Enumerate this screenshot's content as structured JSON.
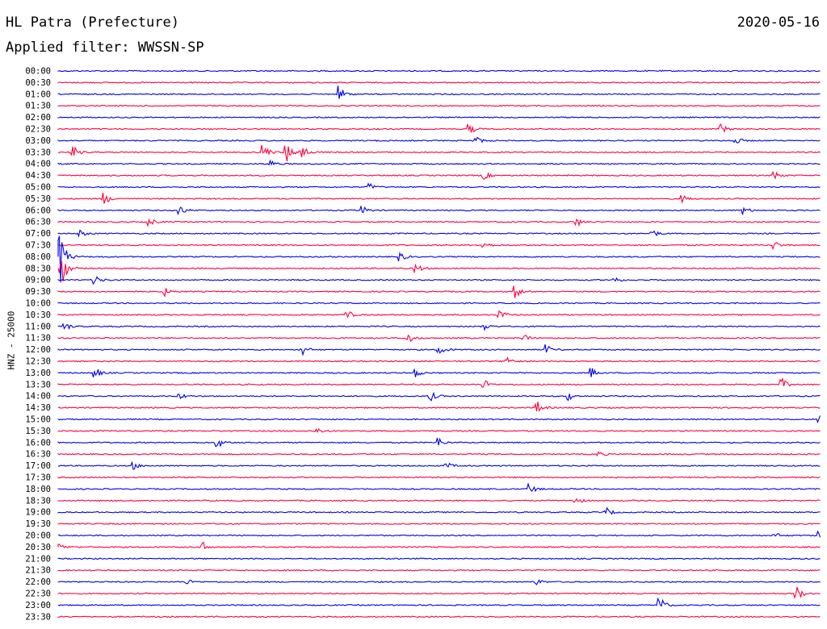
{
  "header": {
    "station": "HL Patra (Prefecture)",
    "date": "2020-05-16",
    "filter": "Applied filter: WWSSN-SP"
  },
  "chart_data": {
    "type": "line",
    "title": "HL Patra (Prefecture)",
    "subtitle": "Applied filter: WWSSN-SP",
    "ylabel": "HNZ - 25000",
    "xlabel": "",
    "grid": false,
    "legend": "none",
    "colors": {
      "even_trace": "#0000ee",
      "odd_trace": "#ff0040"
    },
    "rows": [
      {
        "label": "00:00",
        "events": []
      },
      {
        "label": "00:30",
        "events": []
      },
      {
        "label": "01:00",
        "events": [
          {
            "x": 0.37,
            "amp": 10
          }
        ]
      },
      {
        "label": "01:30",
        "events": []
      },
      {
        "label": "02:00",
        "events": []
      },
      {
        "label": "02:30",
        "events": [
          {
            "x": 0.54,
            "amp": 6
          },
          {
            "x": 0.87,
            "amp": 6
          }
        ]
      },
      {
        "label": "03:00",
        "events": [
          {
            "x": 0.55,
            "amp": 4
          },
          {
            "x": 0.89,
            "amp": 4
          }
        ]
      },
      {
        "label": "03:30",
        "events": [
          {
            "x": 0.02,
            "amp": 8
          },
          {
            "x": 0.27,
            "amp": 10
          },
          {
            "x": 0.3,
            "amp": 13
          },
          {
            "x": 0.32,
            "amp": 10
          }
        ]
      },
      {
        "label": "04:00",
        "events": [
          {
            "x": 0.28,
            "amp": 4
          }
        ]
      },
      {
        "label": "04:30",
        "events": [
          {
            "x": 0.56,
            "amp": 4
          },
          {
            "x": 0.94,
            "amp": 6
          }
        ]
      },
      {
        "label": "05:00",
        "events": [
          {
            "x": 0.41,
            "amp": 4
          }
        ]
      },
      {
        "label": "05:30",
        "events": [
          {
            "x": 0.06,
            "amp": 8
          },
          {
            "x": 0.82,
            "amp": 4
          }
        ]
      },
      {
        "label": "06:00",
        "events": [
          {
            "x": 0.16,
            "amp": 6
          },
          {
            "x": 0.4,
            "amp": 5
          },
          {
            "x": 0.9,
            "amp": 5
          }
        ]
      },
      {
        "label": "06:30",
        "events": [
          {
            "x": 0.12,
            "amp": 5
          },
          {
            "x": 0.68,
            "amp": 6
          }
        ]
      },
      {
        "label": "07:00",
        "events": [
          {
            "x": 0.03,
            "amp": 4
          },
          {
            "x": 0.78,
            "amp": 5
          }
        ]
      },
      {
        "label": "07:30",
        "events": [
          {
            "x": 0.56,
            "amp": 4
          },
          {
            "x": 0.94,
            "amp": 5
          }
        ]
      },
      {
        "label": "08:00",
        "events": [
          {
            "x": 0.0,
            "amp": 60
          },
          {
            "x": 0.45,
            "amp": 5
          }
        ]
      },
      {
        "label": "08:30",
        "events": [
          {
            "x": 0.005,
            "amp": 22
          },
          {
            "x": 0.47,
            "amp": 6
          }
        ]
      },
      {
        "label": "09:00",
        "events": [
          {
            "x": 0.05,
            "amp": 5
          },
          {
            "x": 0.73,
            "amp": 4
          }
        ]
      },
      {
        "label": "09:30",
        "events": [
          {
            "x": 0.14,
            "amp": 5
          },
          {
            "x": 0.6,
            "amp": 8
          }
        ]
      },
      {
        "label": "10:00",
        "events": []
      },
      {
        "label": "10:30",
        "events": [
          {
            "x": 0.38,
            "amp": 5
          },
          {
            "x": 0.58,
            "amp": 6
          }
        ]
      },
      {
        "label": "11:00",
        "events": [
          {
            "x": 0.01,
            "amp": 5
          },
          {
            "x": 0.56,
            "amp": 4
          }
        ]
      },
      {
        "label": "11:30",
        "events": [
          {
            "x": 0.46,
            "amp": 6
          },
          {
            "x": 0.61,
            "amp": 5
          }
        ]
      },
      {
        "label": "12:00",
        "events": [
          {
            "x": 0.32,
            "amp": 7
          },
          {
            "x": 0.5,
            "amp": 7
          },
          {
            "x": 0.64,
            "amp": 6
          }
        ]
      },
      {
        "label": "12:30",
        "events": [
          {
            "x": 0.59,
            "amp": 6
          }
        ]
      },
      {
        "label": "13:00",
        "events": [
          {
            "x": 0.05,
            "amp": 6
          },
          {
            "x": 0.47,
            "amp": 5
          },
          {
            "x": 0.7,
            "amp": 6
          }
        ]
      },
      {
        "label": "13:30",
        "events": [
          {
            "x": 0.56,
            "amp": 5
          },
          {
            "x": 0.95,
            "amp": 7
          }
        ]
      },
      {
        "label": "14:00",
        "events": [
          {
            "x": 0.16,
            "amp": 4
          },
          {
            "x": 0.49,
            "amp": 5
          },
          {
            "x": 0.67,
            "amp": 5
          }
        ]
      },
      {
        "label": "14:30",
        "events": [
          {
            "x": 0.63,
            "amp": 7
          }
        ]
      },
      {
        "label": "15:00",
        "events": [
          {
            "x": 1.0,
            "amp": 5
          }
        ]
      },
      {
        "label": "15:30",
        "events": [
          {
            "x": 0.34,
            "amp": 4
          }
        ]
      },
      {
        "label": "16:00",
        "events": [
          {
            "x": 0.21,
            "amp": 7
          },
          {
            "x": 0.5,
            "amp": 6
          }
        ]
      },
      {
        "label": "16:30",
        "events": [
          {
            "x": 0.71,
            "amp": 3
          }
        ]
      },
      {
        "label": "17:00",
        "events": [
          {
            "x": 0.1,
            "amp": 4
          },
          {
            "x": 0.51,
            "amp": 4
          }
        ]
      },
      {
        "label": "17:30",
        "events": []
      },
      {
        "label": "18:00",
        "events": [
          {
            "x": 0.62,
            "amp": 6
          }
        ]
      },
      {
        "label": "18:30",
        "events": [
          {
            "x": 0.68,
            "amp": 5
          }
        ]
      },
      {
        "label": "19:00",
        "events": [
          {
            "x": 0.72,
            "amp": 5
          }
        ]
      },
      {
        "label": "19:30",
        "events": []
      },
      {
        "label": "20:00",
        "events": [
          {
            "x": 0.94,
            "amp": 4
          },
          {
            "x": 1.0,
            "amp": 5
          }
        ]
      },
      {
        "label": "20:30",
        "events": [
          {
            "x": 0.0,
            "amp": 5
          },
          {
            "x": 0.19,
            "amp": 6
          }
        ]
      },
      {
        "label": "21:00",
        "events": []
      },
      {
        "label": "21:30",
        "events": []
      },
      {
        "label": "22:00",
        "events": [
          {
            "x": 0.17,
            "amp": 3
          },
          {
            "x": 0.63,
            "amp": 3
          }
        ]
      },
      {
        "label": "22:30",
        "events": [
          {
            "x": 0.97,
            "amp": 9
          }
        ]
      },
      {
        "label": "23:00",
        "events": [
          {
            "x": 0.79,
            "amp": 10
          }
        ]
      },
      {
        "label": "23:30",
        "events": []
      }
    ]
  }
}
